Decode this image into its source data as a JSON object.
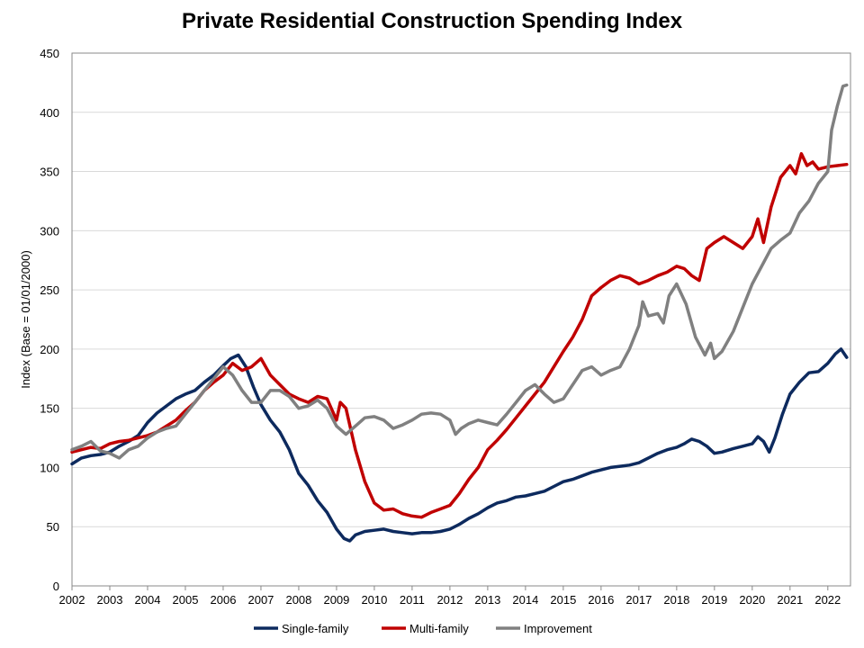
{
  "chart_data": {
    "type": "line",
    "title": "Private Residential Construction Spending Index",
    "ylabel": "Index  (Base = 01/01/2000)",
    "xlabel": "",
    "xlim": [
      2002,
      2022.6
    ],
    "ylim": [
      0,
      450
    ],
    "yticks": [
      0,
      50,
      100,
      150,
      200,
      250,
      300,
      350,
      400,
      450
    ],
    "xticks": [
      "2002",
      "2003",
      "2004",
      "2005",
      "2006",
      "2007",
      "2008",
      "2009",
      "2010",
      "2011",
      "2012",
      "2013",
      "2014",
      "2015",
      "2016",
      "2017",
      "2018",
      "2019",
      "2020",
      "2021",
      "2022"
    ],
    "grid": "horizontal",
    "legend_position": "bottom",
    "colors": {
      "Single-family": "#0d2a5e",
      "Multi-family": "#c00000",
      "Improvement": "#808080"
    },
    "series": [
      {
        "name": "Single-family",
        "x": [
          2002.0,
          2002.25,
          2002.5,
          2002.75,
          2003.0,
          2003.25,
          2003.5,
          2003.75,
          2004.0,
          2004.25,
          2004.5,
          2004.75,
          2005.0,
          2005.25,
          2005.5,
          2005.75,
          2006.0,
          2006.2,
          2006.4,
          2006.6,
          2006.8,
          2007.0,
          2007.25,
          2007.5,
          2007.75,
          2008.0,
          2008.25,
          2008.5,
          2008.75,
          2009.0,
          2009.2,
          2009.35,
          2009.5,
          2009.75,
          2010.0,
          2010.25,
          2010.5,
          2010.75,
          2011.0,
          2011.25,
          2011.5,
          2011.75,
          2012.0,
          2012.25,
          2012.5,
          2012.75,
          2013.0,
          2013.25,
          2013.5,
          2013.75,
          2014.0,
          2014.25,
          2014.5,
          2014.75,
          2015.0,
          2015.25,
          2015.5,
          2015.75,
          2016.0,
          2016.25,
          2016.5,
          2016.75,
          2017.0,
          2017.25,
          2017.5,
          2017.75,
          2018.0,
          2018.2,
          2018.4,
          2018.6,
          2018.8,
          2019.0,
          2019.2,
          2019.5,
          2019.75,
          2020.0,
          2020.15,
          2020.3,
          2020.45,
          2020.6,
          2020.8,
          2021.0,
          2021.25,
          2021.5,
          2021.75,
          2022.0,
          2022.2,
          2022.35,
          2022.5
        ],
        "values": [
          103,
          108,
          110,
          111,
          113,
          118,
          122,
          127,
          138,
          146,
          152,
          158,
          162,
          165,
          172,
          178,
          186,
          192,
          195,
          185,
          168,
          153,
          140,
          130,
          115,
          95,
          85,
          72,
          62,
          48,
          40,
          38,
          43,
          46,
          47,
          48,
          46,
          45,
          44,
          45,
          45,
          46,
          48,
          52,
          57,
          61,
          66,
          70,
          72,
          75,
          76,
          78,
          80,
          84,
          88,
          90,
          93,
          96,
          98,
          100,
          101,
          102,
          104,
          108,
          112,
          115,
          117,
          120,
          124,
          122,
          118,
          112,
          113,
          116,
          118,
          120,
          126,
          122,
          113,
          125,
          145,
          162,
          172,
          180,
          181,
          188,
          196,
          200,
          193
        ]
      },
      {
        "name": "Multi-family",
        "x": [
          2002.0,
          2002.25,
          2002.5,
          2002.75,
          2003.0,
          2003.25,
          2003.5,
          2003.75,
          2004.0,
          2004.25,
          2004.5,
          2004.75,
          2005.0,
          2005.25,
          2005.5,
          2005.75,
          2006.0,
          2006.25,
          2006.5,
          2006.75,
          2007.0,
          2007.25,
          2007.5,
          2007.75,
          2008.0,
          2008.25,
          2008.5,
          2008.75,
          2009.0,
          2009.1,
          2009.25,
          2009.5,
          2009.75,
          2010.0,
          2010.25,
          2010.5,
          2010.75,
          2011.0,
          2011.25,
          2011.5,
          2011.75,
          2012.0,
          2012.25,
          2012.5,
          2012.75,
          2013.0,
          2013.25,
          2013.5,
          2013.75,
          2014.0,
          2014.25,
          2014.5,
          2014.75,
          2015.0,
          2015.25,
          2015.5,
          2015.75,
          2016.0,
          2016.25,
          2016.5,
          2016.75,
          2017.0,
          2017.25,
          2017.5,
          2017.75,
          2018.0,
          2018.2,
          2018.4,
          2018.6,
          2018.8,
          2019.0,
          2019.25,
          2019.5,
          2019.75,
          2020.0,
          2020.15,
          2020.3,
          2020.5,
          2020.75,
          2021.0,
          2021.15,
          2021.3,
          2021.45,
          2021.6,
          2021.75,
          2022.0,
          2022.25,
          2022.5
        ],
        "values": [
          113,
          115,
          117,
          116,
          120,
          122,
          123,
          125,
          127,
          130,
          135,
          140,
          148,
          155,
          165,
          172,
          178,
          188,
          182,
          185,
          192,
          178,
          170,
          162,
          158,
          155,
          160,
          158,
          140,
          155,
          150,
          115,
          88,
          70,
          64,
          65,
          61,
          59,
          58,
          62,
          65,
          68,
          78,
          90,
          100,
          115,
          123,
          132,
          142,
          152,
          162,
          172,
          185,
          198,
          210,
          225,
          245,
          252,
          258,
          262,
          260,
          255,
          258,
          262,
          265,
          270,
          268,
          262,
          258,
          285,
          290,
          295,
          290,
          285,
          295,
          310,
          290,
          320,
          345,
          355,
          348,
          365,
          355,
          358,
          352,
          354,
          355,
          356
        ]
      },
      {
        "name": "Improvement",
        "x": [
          2002.0,
          2002.25,
          2002.5,
          2002.75,
          2003.0,
          2003.25,
          2003.5,
          2003.75,
          2004.0,
          2004.25,
          2004.5,
          2004.75,
          2005.0,
          2005.25,
          2005.5,
          2005.75,
          2006.0,
          2006.25,
          2006.5,
          2006.75,
          2007.0,
          2007.25,
          2007.5,
          2007.75,
          2008.0,
          2008.25,
          2008.5,
          2008.75,
          2009.0,
          2009.25,
          2009.5,
          2009.75,
          2010.0,
          2010.25,
          2010.5,
          2010.75,
          2011.0,
          2011.25,
          2011.5,
          2011.75,
          2012.0,
          2012.15,
          2012.3,
          2012.5,
          2012.75,
          2013.0,
          2013.25,
          2013.5,
          2013.75,
          2014.0,
          2014.25,
          2014.5,
          2014.75,
          2015.0,
          2015.25,
          2015.5,
          2015.75,
          2016.0,
          2016.25,
          2016.5,
          2016.75,
          2017.0,
          2017.1,
          2017.25,
          2017.5,
          2017.65,
          2017.8,
          2018.0,
          2018.25,
          2018.5,
          2018.75,
          2018.9,
          2019.0,
          2019.2,
          2019.5,
          2019.75,
          2020.0,
          2020.25,
          2020.5,
          2020.75,
          2021.0,
          2021.25,
          2021.5,
          2021.75,
          2022.0,
          2022.1,
          2022.25,
          2022.4,
          2022.5
        ],
        "values": [
          115,
          118,
          122,
          114,
          112,
          108,
          115,
          118,
          125,
          130,
          133,
          135,
          145,
          155,
          165,
          175,
          185,
          178,
          165,
          155,
          155,
          165,
          165,
          160,
          150,
          152,
          157,
          150,
          135,
          128,
          135,
          142,
          143,
          140,
          133,
          136,
          140,
          145,
          146,
          145,
          140,
          128,
          133,
          137,
          140,
          138,
          136,
          145,
          155,
          165,
          170,
          162,
          155,
          158,
          170,
          182,
          185,
          178,
          182,
          185,
          200,
          220,
          240,
          228,
          230,
          222,
          245,
          255,
          238,
          210,
          195,
          205,
          192,
          198,
          215,
          235,
          255,
          270,
          285,
          292,
          298,
          315,
          325,
          340,
          350,
          385,
          405,
          422,
          423
        ]
      }
    ]
  }
}
